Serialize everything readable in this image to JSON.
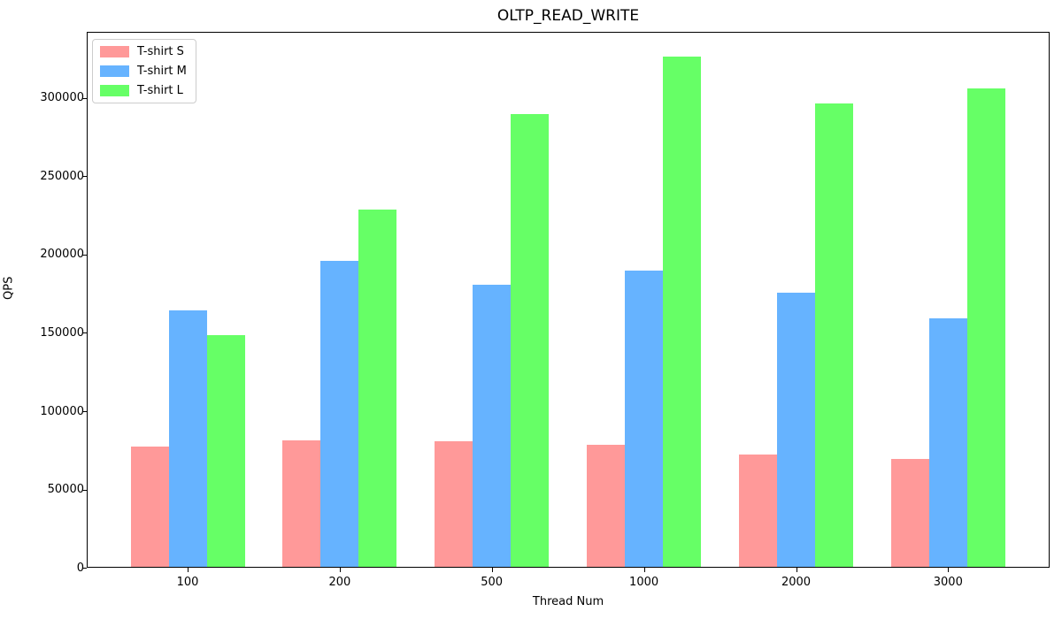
{
  "chart_data": {
    "type": "bar",
    "title": "OLTP_READ_WRITE",
    "xlabel": "Thread Num",
    "ylabel": "QPS",
    "categories": [
      "100",
      "200",
      "500",
      "1000",
      "2000",
      "3000"
    ],
    "series": [
      {
        "name": "T-shirt S",
        "color": "#ff9999",
        "values": [
          77000,
          81000,
          80500,
          78000,
          72000,
          69000
        ]
      },
      {
        "name": "T-shirt M",
        "color": "#66b3ff",
        "values": [
          164000,
          195500,
          180000,
          189500,
          175000,
          158500
        ]
      },
      {
        "name": "T-shirt L",
        "color": "#66ff66",
        "values": [
          148000,
          228000,
          289500,
          326000,
          296000,
          305500
        ]
      }
    ],
    "yticks": [
      0,
      50000,
      100000,
      150000,
      200000,
      250000,
      300000
    ],
    "ylim": [
      0,
      342300
    ],
    "grid": false,
    "legend_position": "upper left",
    "background_color": "#ffffff",
    "text_color": "#000000"
  }
}
